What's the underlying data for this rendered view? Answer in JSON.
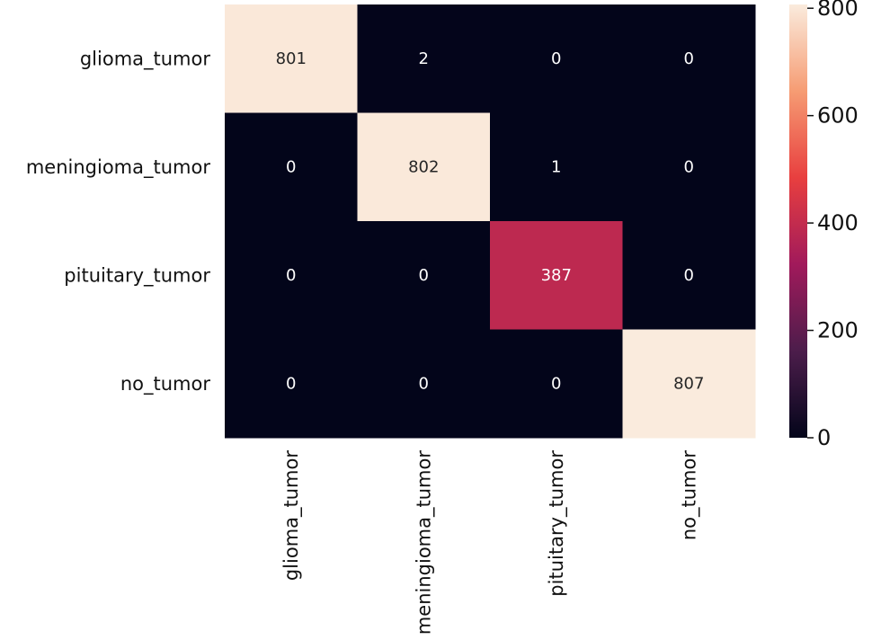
{
  "chart_data": {
    "type": "heatmap",
    "title": "",
    "xlabel": "",
    "ylabel": "",
    "x_categories": [
      "glioma_tumor",
      "meningioma_tumor",
      "pituitary_tumor",
      "no_tumor"
    ],
    "y_categories": [
      "glioma_tumor",
      "meningioma_tumor",
      "pituitary_tumor",
      "no_tumor"
    ],
    "values": [
      [
        801,
        2,
        0,
        0
      ],
      [
        0,
        802,
        1,
        0
      ],
      [
        0,
        0,
        387,
        0
      ],
      [
        0,
        0,
        0,
        807
      ]
    ],
    "colorbar": {
      "range": [
        0,
        807
      ],
      "ticks": [
        0,
        200,
        400,
        600,
        800
      ]
    },
    "colormap": [
      "#03051a",
      "#4c1d4b",
      "#a11a5b",
      "#e83f3f",
      "#f69c73",
      "#faebdd"
    ],
    "grid": false
  }
}
